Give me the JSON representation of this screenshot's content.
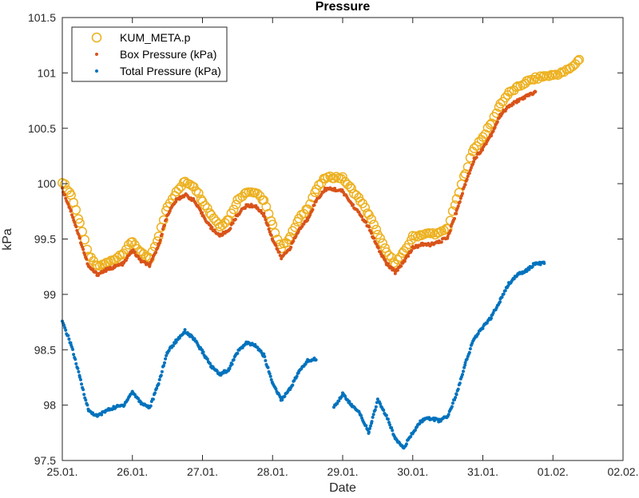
{
  "chart_data": {
    "type": "scatter",
    "title": "Pressure",
    "xlabel": "Date",
    "ylabel": "kPa",
    "x_ticks": [
      "25.01.",
      "26.01.",
      "27.01.",
      "28.01.",
      "29.01.",
      "30.01.",
      "31.01.",
      "01.02.",
      "02.02."
    ],
    "y_ticks": [
      "97.5",
      "98",
      "98.5",
      "99",
      "99.5",
      "100",
      "100.5",
      "101",
      "101.5"
    ],
    "xlim": [
      "25.01.",
      "02.02."
    ],
    "ylim": [
      97.5,
      101.5
    ],
    "grid": false,
    "legend_position": "top-left",
    "series": [
      {
        "name": "KUM_META.p",
        "marker": "open-circle",
        "color": "#EDB120",
        "points": [
          [
            "25.01. 00:00",
            100.02
          ],
          [
            "25.01. 03:00",
            99.9
          ],
          [
            "25.01. 06:00",
            99.65
          ],
          [
            "25.01. 09:00",
            99.35
          ],
          [
            "25.01. 12:00",
            99.25
          ],
          [
            "25.01. 15:00",
            99.28
          ],
          [
            "25.01. 18:00",
            99.32
          ],
          [
            "25.01. 21:00",
            99.38
          ],
          [
            "26.01. 00:00",
            99.48
          ],
          [
            "26.01. 03:00",
            99.37
          ],
          [
            "26.01. 06:00",
            99.32
          ],
          [
            "26.01. 09:00",
            99.52
          ],
          [
            "26.01. 12:00",
            99.8
          ],
          [
            "26.01. 15:00",
            99.92
          ],
          [
            "26.01. 18:00",
            100.02
          ],
          [
            "26.01. 21:00",
            99.98
          ],
          [
            "27.01. 00:00",
            99.85
          ],
          [
            "27.01. 03:00",
            99.72
          ],
          [
            "27.01. 06:00",
            99.62
          ],
          [
            "27.01. 09:00",
            99.68
          ],
          [
            "27.01. 12:00",
            99.85
          ],
          [
            "27.01. 15:00",
            99.93
          ],
          [
            "27.01. 18:00",
            99.92
          ],
          [
            "27.01. 21:00",
            99.85
          ],
          [
            "28.01. 00:00",
            99.62
          ],
          [
            "28.01. 03:00",
            99.42
          ],
          [
            "28.01. 06:00",
            99.52
          ],
          [
            "28.01. 09:00",
            99.68
          ],
          [
            "28.01. 12:00",
            99.78
          ],
          [
            "28.01. 15:00",
            99.95
          ],
          [
            "28.01. 18:00",
            100.05
          ],
          [
            "28.01. 21:00",
            100.06
          ],
          [
            "29.01. 00:00",
            100.05
          ],
          [
            "29.01. 03:00",
            99.95
          ],
          [
            "29.01. 06:00",
            99.85
          ],
          [
            "29.01. 09:00",
            99.72
          ],
          [
            "29.01. 12:00",
            99.55
          ],
          [
            "29.01. 15:00",
            99.38
          ],
          [
            "29.01. 18:00",
            99.28
          ],
          [
            "29.01. 21:00",
            99.38
          ],
          [
            "30.01. 00:00",
            99.52
          ],
          [
            "30.01. 03:00",
            99.54
          ],
          [
            "30.01. 06:00",
            99.55
          ],
          [
            "30.01. 09:00",
            99.55
          ],
          [
            "30.01. 12:00",
            99.6
          ],
          [
            "30.01. 15:00",
            99.85
          ],
          [
            "30.01. 18:00",
            100.1
          ],
          [
            "30.01. 21:00",
            100.32
          ],
          [
            "31.01. 00:00",
            100.42
          ],
          [
            "31.01. 03:00",
            100.55
          ],
          [
            "31.01. 06:00",
            100.72
          ],
          [
            "31.01. 09:00",
            100.82
          ],
          [
            "31.01. 12:00",
            100.87
          ],
          [
            "31.01. 15:00",
            100.92
          ],
          [
            "31.01. 18:00",
            100.95
          ],
          [
            "31.01. 21:00",
            100.97
          ],
          [
            "01.02. 00:00",
            100.98
          ],
          [
            "01.02. 03:00",
            101.0
          ],
          [
            "01.02. 06:00",
            101.04
          ],
          [
            "01.02. 09:00",
            101.12
          ]
        ]
      },
      {
        "name": "Box Pressure (kPa)",
        "marker": "dot",
        "color": "#D95319",
        "points": [
          [
            "25.01. 00:00",
            99.95
          ],
          [
            "25.01. 03:00",
            99.75
          ],
          [
            "25.01. 06:00",
            99.5
          ],
          [
            "25.01. 09:00",
            99.25
          ],
          [
            "25.01. 12:00",
            99.18
          ],
          [
            "25.01. 15:00",
            99.22
          ],
          [
            "25.01. 18:00",
            99.25
          ],
          [
            "25.01. 21:00",
            99.28
          ],
          [
            "26.01. 00:00",
            99.4
          ],
          [
            "26.01. 03:00",
            99.3
          ],
          [
            "26.01. 06:00",
            99.26
          ],
          [
            "26.01. 09:00",
            99.45
          ],
          [
            "26.01. 12:00",
            99.72
          ],
          [
            "26.01. 15:00",
            99.85
          ],
          [
            "26.01. 18:00",
            99.9
          ],
          [
            "26.01. 21:00",
            99.85
          ],
          [
            "27.01. 00:00",
            99.72
          ],
          [
            "27.01. 03:00",
            99.6
          ],
          [
            "27.01. 06:00",
            99.53
          ],
          [
            "27.01. 09:00",
            99.58
          ],
          [
            "27.01. 12:00",
            99.72
          ],
          [
            "27.01. 15:00",
            99.8
          ],
          [
            "27.01. 18:00",
            99.8
          ],
          [
            "27.01. 21:00",
            99.72
          ],
          [
            "28.01. 00:00",
            99.5
          ],
          [
            "28.01. 03:00",
            99.33
          ],
          [
            "28.01. 06:00",
            99.42
          ],
          [
            "28.01. 09:00",
            99.58
          ],
          [
            "28.01. 12:00",
            99.68
          ],
          [
            "28.01. 15:00",
            99.85
          ],
          [
            "28.01. 18:00",
            99.95
          ],
          [
            "28.01. 21:00",
            99.95
          ],
          [
            "29.01. 00:00",
            99.93
          ],
          [
            "29.01. 03:00",
            99.82
          ],
          [
            "29.01. 06:00",
            99.72
          ],
          [
            "29.01. 09:00",
            99.6
          ],
          [
            "29.01. 12:00",
            99.42
          ],
          [
            "29.01. 15:00",
            99.28
          ],
          [
            "29.01. 18:00",
            99.2
          ],
          [
            "29.01. 21:00",
            99.3
          ],
          [
            "30.01. 00:00",
            99.42
          ],
          [
            "30.01. 03:00",
            99.45
          ],
          [
            "30.01. 06:00",
            99.45
          ],
          [
            "30.01. 09:00",
            99.47
          ],
          [
            "30.01. 12:00",
            99.52
          ],
          [
            "30.01. 15:00",
            99.75
          ],
          [
            "30.01. 18:00",
            100.0
          ],
          [
            "30.01. 21:00",
            100.22
          ],
          [
            "31.01. 00:00",
            100.32
          ],
          [
            "31.01. 03:00",
            100.45
          ],
          [
            "31.01. 06:00",
            100.62
          ],
          [
            "31.01. 09:00",
            100.7
          ],
          [
            "31.01. 12:00",
            100.75
          ],
          [
            "31.01. 15:00",
            100.79
          ],
          [
            "31.01. 18:00",
            100.83
          ]
        ]
      },
      {
        "name": "Total Pressure (kPa)",
        "marker": "dot",
        "color": "#0072BD",
        "points": [
          [
            "25.01. 00:00",
            98.75
          ],
          [
            "25.01. 03:00",
            98.55
          ],
          [
            "25.01. 06:00",
            98.25
          ],
          [
            "25.01. 09:00",
            97.95
          ],
          [
            "25.01. 12:00",
            97.9
          ],
          [
            "25.01. 15:00",
            97.95
          ],
          [
            "25.01. 18:00",
            97.98
          ],
          [
            "25.01. 21:00",
            98.0
          ],
          [
            "26.01. 00:00",
            98.12
          ],
          [
            "26.01. 03:00",
            98.02
          ],
          [
            "26.01. 06:00",
            97.98
          ],
          [
            "26.01. 09:00",
            98.2
          ],
          [
            "26.01. 12:00",
            98.48
          ],
          [
            "26.01. 15:00",
            98.58
          ],
          [
            "26.01. 18:00",
            98.67
          ],
          [
            "26.01. 21:00",
            98.6
          ],
          [
            "27.01. 00:00",
            98.48
          ],
          [
            "27.01. 03:00",
            98.35
          ],
          [
            "27.01. 06:00",
            98.28
          ],
          [
            "27.01. 09:00",
            98.32
          ],
          [
            "27.01. 12:00",
            98.48
          ],
          [
            "27.01. 15:00",
            98.56
          ],
          [
            "27.01. 18:00",
            98.54
          ],
          [
            "27.01. 21:00",
            98.45
          ],
          [
            "28.01. 00:00",
            98.2
          ],
          [
            "28.01. 03:00",
            98.05
          ],
          [
            "28.01. 06:00",
            98.15
          ],
          [
            "28.01. 09:00",
            98.3
          ],
          [
            "28.01. 12:00",
            98.4
          ],
          [
            "28.01. 15:00",
            98.42
          ],
          [
            "28.01. 21:00",
            97.98
          ],
          [
            "29.01. 00:00",
            98.1
          ],
          [
            "29.01. 03:00",
            98.0
          ],
          [
            "29.01. 06:00",
            97.92
          ],
          [
            "29.01. 09:00",
            97.75
          ],
          [
            "29.01. 10:00",
            97.85
          ],
          [
            "29.01. 12:00",
            98.05
          ],
          [
            "29.01. 15:00",
            97.9
          ],
          [
            "29.01. 18:00",
            97.7
          ],
          [
            "29.01. 21:00",
            97.62
          ],
          [
            "30.01. 00:00",
            97.75
          ],
          [
            "30.01. 03:00",
            97.86
          ],
          [
            "30.01. 06:00",
            97.88
          ],
          [
            "30.01. 09:00",
            97.86
          ],
          [
            "30.01. 12:00",
            97.9
          ],
          [
            "30.01. 15:00",
            98.1
          ],
          [
            "30.01. 18:00",
            98.38
          ],
          [
            "30.01. 21:00",
            98.6
          ],
          [
            "31.01. 00:00",
            98.7
          ],
          [
            "31.01. 03:00",
            98.8
          ],
          [
            "31.01. 06:00",
            98.95
          ],
          [
            "31.01. 09:00",
            99.1
          ],
          [
            "31.01. 12:00",
            99.18
          ],
          [
            "31.01. 15:00",
            99.22
          ],
          [
            "31.01. 18:00",
            99.28
          ],
          [
            "31.01. 21:00",
            99.28
          ]
        ]
      }
    ]
  }
}
